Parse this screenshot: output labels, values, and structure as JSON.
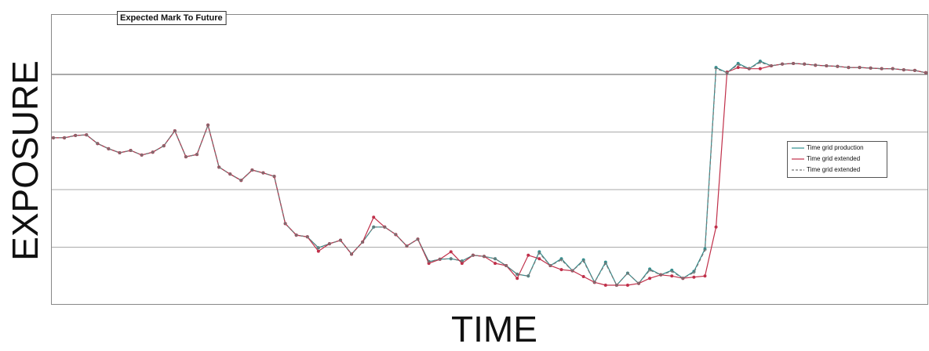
{
  "chart_data": {
    "type": "line",
    "title": "Expected Mark To Future",
    "x_label": "TIME",
    "y_label": "EXPOSURE",
    "ylim": [
      0,
      5
    ],
    "ygrid": [
      1,
      2,
      3,
      4
    ],
    "grid": true,
    "legend": "right",
    "series": [
      {
        "name": "Time grid production",
        "color": "#2f8f8f",
        "dash": false,
        "values": [
          2.9,
          2.9,
          2.94,
          2.95,
          2.8,
          2.71,
          2.64,
          2.68,
          2.6,
          2.65,
          2.76,
          3.02,
          2.57,
          2.61,
          3.12,
          2.39,
          2.27,
          2.16,
          2.34,
          2.29,
          2.23,
          1.41,
          1.21,
          1.18,
          0.99,
          1.06,
          1.12,
          0.88,
          1.09,
          1.35,
          1.35,
          1.22,
          1.02,
          1.14,
          0.75,
          0.79,
          0.8,
          0.76,
          0.86,
          0.84,
          0.8,
          0.68,
          0.53,
          0.5,
          0.92,
          0.68,
          0.8,
          0.59,
          0.78,
          0.39,
          0.74,
          0.34,
          0.55,
          0.37,
          0.62,
          0.52,
          0.6,
          0.46,
          0.58,
          0.97,
          4.12,
          4.03,
          4.19,
          4.1,
          4.23,
          4.15,
          4.18,
          4.19,
          4.18,
          4.16,
          4.15,
          4.14,
          4.12,
          4.12,
          4.11,
          4.1,
          4.1,
          4.08,
          4.07,
          4.03
        ]
      },
      {
        "name": "Time grid extended",
        "color": "#c0304a",
        "dash": false,
        "values": [
          2.9,
          2.9,
          2.94,
          2.95,
          2.8,
          2.71,
          2.64,
          2.68,
          2.6,
          2.65,
          2.76,
          3.02,
          2.57,
          2.61,
          3.12,
          2.39,
          2.27,
          2.16,
          2.34,
          2.29,
          2.23,
          1.41,
          1.21,
          1.18,
          0.93,
          1.06,
          1.12,
          0.88,
          1.09,
          1.52,
          1.35,
          1.22,
          1.02,
          1.14,
          0.72,
          0.79,
          0.92,
          0.72,
          0.86,
          0.84,
          0.72,
          0.68,
          0.46,
          0.86,
          0.8,
          0.68,
          0.61,
          0.59,
          0.49,
          0.39,
          0.34,
          0.34,
          0.34,
          0.37,
          0.46,
          0.52,
          0.5,
          0.46,
          0.48,
          0.5,
          1.35,
          4.04,
          4.12,
          4.1,
          4.1,
          4.15,
          4.18,
          4.19,
          4.18,
          4.16,
          4.15,
          4.14,
          4.12,
          4.12,
          4.11,
          4.1,
          4.1,
          4.08,
          4.07,
          4.03
        ]
      },
      {
        "name": "Time grid extended",
        "color": "#777777",
        "dash": true,
        "values": [
          2.9,
          2.9,
          2.94,
          2.95,
          2.8,
          2.71,
          2.64,
          2.68,
          2.6,
          2.65,
          2.76,
          3.02,
          2.57,
          2.61,
          3.12,
          2.39,
          2.27,
          2.16,
          2.34,
          2.29,
          2.23,
          1.41,
          1.21,
          1.18,
          0.99,
          1.06,
          1.12,
          0.88,
          1.09,
          1.35,
          1.35,
          1.22,
          1.02,
          1.14,
          0.75,
          0.79,
          0.8,
          0.76,
          0.86,
          0.84,
          0.8,
          0.68,
          0.53,
          0.5,
          0.9,
          0.68,
          0.78,
          0.59,
          0.76,
          0.39,
          0.72,
          0.34,
          0.55,
          0.37,
          0.6,
          0.52,
          0.58,
          0.46,
          0.56,
          0.95,
          4.1,
          4.03,
          4.17,
          4.1,
          4.21,
          4.15,
          4.18,
          4.19,
          4.18,
          4.16,
          4.15,
          4.14,
          4.12,
          4.12,
          4.11,
          4.1,
          4.1,
          4.08,
          4.07,
          4.03
        ]
      }
    ]
  }
}
